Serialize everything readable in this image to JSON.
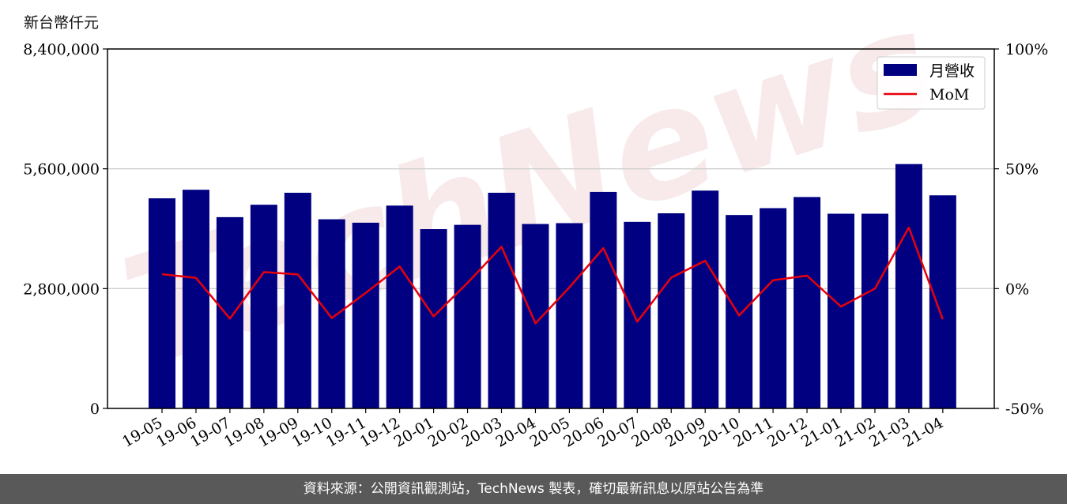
{
  "chart_data": {
    "type": "bar",
    "y_unit_label": "新台幣仟元",
    "categories": [
      "19-05",
      "19-06",
      "19-07",
      "19-08",
      "19-09",
      "19-10",
      "19-11",
      "19-12",
      "20-01",
      "20-02",
      "20-03",
      "20-04",
      "20-05",
      "20-06",
      "20-07",
      "20-08",
      "20-09",
      "20-10",
      "20-11",
      "20-12",
      "21-01",
      "21-02",
      "21-03",
      "21-04"
    ],
    "series": [
      {
        "name": "月營收",
        "kind": "bar",
        "axis": "left",
        "color": "#000080",
        "values": [
          4910000,
          5110000,
          4470000,
          4760000,
          5040000,
          4420000,
          4340000,
          4740000,
          4190000,
          4290000,
          5040000,
          4310000,
          4330000,
          5060000,
          4360000,
          4560000,
          5090000,
          4520000,
          4680000,
          4940000,
          4550000,
          4550000,
          5710000,
          4980000
        ]
      },
      {
        "name": "MoM",
        "kind": "line",
        "axis": "right",
        "color": "#e8000b",
        "values": [
          6.0,
          4.5,
          -12.5,
          6.9,
          5.9,
          -12.3,
          -1.8,
          9.2,
          -11.6,
          2.4,
          17.5,
          -14.5,
          0.5,
          16.9,
          -13.8,
          4.6,
          11.6,
          -11.2,
          3.5,
          5.4,
          -7.5,
          0.0,
          25.5,
          -12.8
        ]
      }
    ],
    "y_left": {
      "min": 0,
      "max": 8400000,
      "ticks": [
        0,
        2800000,
        5600000,
        8400000
      ],
      "tick_labels": [
        "0",
        "2,800,000",
        "5,600,000",
        "8,400,000"
      ]
    },
    "y_right": {
      "min": -50,
      "max": 100,
      "ticks": [
        -50,
        0,
        50,
        100
      ],
      "tick_labels": [
        "-50%",
        "0%",
        "50%",
        "100%"
      ]
    },
    "grid": "horizontal",
    "legend": {
      "placement": "top-right",
      "entries": [
        "月營收",
        "MoM"
      ]
    },
    "watermark": "TechNews"
  },
  "footer": {
    "text": "資料來源：公開資訊觀測站，TechNews 製表，確切最新訊息以原站公告為準"
  }
}
